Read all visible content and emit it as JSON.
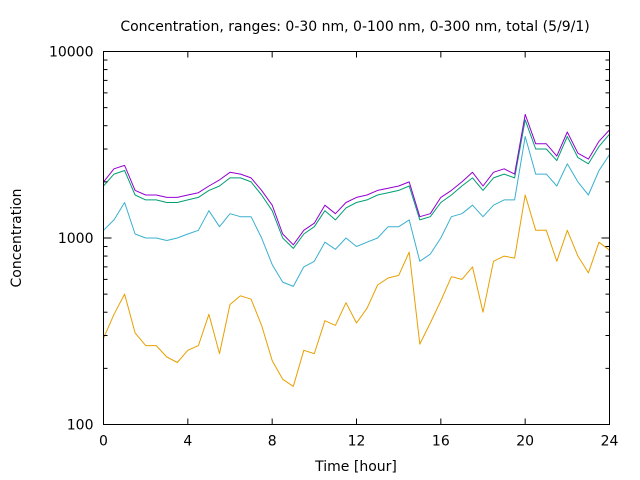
{
  "chart_data": {
    "type": "line",
    "title": "Concentration, ranges: 0-30 nm, 0-100 nm, 0-300 nm, total (5/9/1)",
    "xlabel": "Time [hour]",
    "ylabel": "Concentration",
    "xlim": [
      0,
      24
    ],
    "ylim": [
      100,
      10000
    ],
    "yscale": "log",
    "grid": false,
    "legend": "none",
    "x_ticks": [
      {
        "value": 0,
        "label": "0"
      },
      {
        "value": 4,
        "label": "4"
      },
      {
        "value": 8,
        "label": "8"
      },
      {
        "value": 12,
        "label": "12"
      },
      {
        "value": 16,
        "label": "16"
      },
      {
        "value": 20,
        "label": "20"
      },
      {
        "value": 24,
        "label": "24"
      }
    ],
    "y_ticks": [
      {
        "value": 100,
        "label": "100"
      },
      {
        "value": 1000,
        "label": "1000"
      },
      {
        "value": 10000,
        "label": "10000"
      }
    ],
    "x": [
      0,
      0.5,
      1,
      1.5,
      2,
      2.5,
      3,
      3.5,
      4,
      4.5,
      5,
      5.5,
      6,
      6.5,
      7,
      7.5,
      8,
      8.5,
      9,
      9.5,
      10,
      10.5,
      11,
      11.5,
      12,
      12.5,
      13,
      13.5,
      14,
      14.5,
      15,
      15.5,
      16,
      16.5,
      17,
      17.5,
      18,
      18.5,
      19,
      19.5,
      20,
      20.5,
      21,
      21.5,
      22,
      22.5,
      23,
      23.5,
      24
    ],
    "series": [
      {
        "color": "#e8a000",
        "values": [
          290,
          390,
          500,
          310,
          265,
          265,
          230,
          215,
          250,
          265,
          390,
          240,
          440,
          490,
          470,
          340,
          220,
          175,
          160,
          250,
          240,
          360,
          340,
          450,
          350,
          420,
          560,
          610,
          630,
          840,
          270,
          350,
          460,
          620,
          600,
          700,
          400,
          750,
          800,
          780,
          1700,
          1100,
          1100,
          750,
          1100,
          800,
          650,
          950,
          860
        ]
      },
      {
        "color": "#3ab0d0",
        "values": [
          1100,
          1250,
          1550,
          1050,
          1000,
          1000,
          970,
          1000,
          1050,
          1100,
          1400,
          1150,
          1350,
          1300,
          1300,
          1000,
          720,
          580,
          550,
          700,
          750,
          950,
          870,
          1000,
          900,
          950,
          1000,
          1150,
          1150,
          1250,
          750,
          820,
          1000,
          1300,
          1350,
          1500,
          1300,
          1500,
          1600,
          1600,
          3500,
          2200,
          2200,
          1900,
          2500,
          2000,
          1700,
          2300,
          2800
        ]
      },
      {
        "color": "#009e73",
        "values": [
          1900,
          2200,
          2300,
          1700,
          1600,
          1600,
          1550,
          1550,
          1600,
          1650,
          1800,
          1900,
          2100,
          2100,
          2000,
          1700,
          1400,
          1000,
          880,
          1050,
          1150,
          1400,
          1250,
          1450,
          1550,
          1600,
          1700,
          1750,
          1800,
          1900,
          1250,
          1300,
          1550,
          1700,
          1900,
          2100,
          1800,
          2100,
          2200,
          2100,
          4300,
          3000,
          3000,
          2600,
          3500,
          2700,
          2500,
          3100,
          3600
        ]
      },
      {
        "color": "#9400d3",
        "values": [
          2000,
          2350,
          2450,
          1800,
          1700,
          1700,
          1650,
          1650,
          1700,
          1750,
          1900,
          2050,
          2250,
          2200,
          2100,
          1800,
          1500,
          1050,
          920,
          1100,
          1200,
          1500,
          1350,
          1550,
          1650,
          1700,
          1800,
          1850,
          1900,
          2000,
          1300,
          1350,
          1650,
          1800,
          2000,
          2250,
          1900,
          2250,
          2350,
          2200,
          4600,
          3200,
          3200,
          2750,
          3700,
          2850,
          2650,
          3300,
          3800
        ]
      }
    ]
  }
}
